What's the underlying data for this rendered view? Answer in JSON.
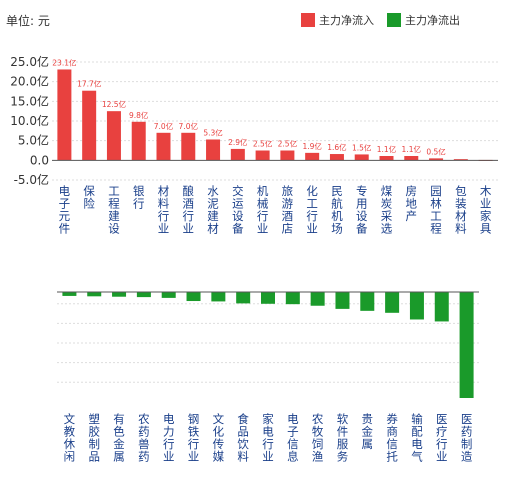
{
  "header": {
    "unit_label": "单位: 元"
  },
  "colors": {
    "inflow": "#e8413f",
    "outflow": "#1a9a2a",
    "category_text": "#1a3f8a",
    "axis_text": "#333333",
    "grid": "#dddddd"
  },
  "legend": [
    {
      "name": "主力净流入",
      "color": "#e8413f"
    },
    {
      "name": "主力净流出",
      "color": "#1a9a2a"
    }
  ],
  "chart_data": [
    {
      "type": "bar",
      "series_name": "主力净流入",
      "categories": [
        "电子元件",
        "保险",
        "工程建设",
        "银行",
        "材料行业",
        "酿酒行业",
        "水泥建材",
        "交运设备",
        "机械行业",
        "旅游酒店",
        "化工行业",
        "民航机场",
        "专用设备",
        "煤炭采选",
        "房地产",
        "园林工程",
        "包装材料",
        "木业家具"
      ],
      "values": [
        23.1,
        17.7,
        12.5,
        9.8,
        7.0,
        7.0,
        5.3,
        2.9,
        2.5,
        2.5,
        1.9,
        1.6,
        1.5,
        1.1,
        1.1,
        0.5,
        0.3,
        0.1
      ],
      "data_labels": [
        "23.1亿",
        "17.7亿",
        "12.5亿",
        "9.8亿",
        "7.0亿",
        "7.0亿",
        "5.3亿",
        "2.9亿",
        "2.5亿",
        "2.5亿",
        "1.9亿",
        "1.6亿",
        "1.5亿",
        "1.1亿",
        "1.1亿",
        "0.5亿",
        "",
        ""
      ],
      "yticks": [
        "25.0亿",
        "20.0亿",
        "15.0亿",
        "10.0亿",
        "5.0亿",
        "0.0",
        "-5.0亿"
      ],
      "ylim": [
        -5,
        25
      ],
      "grid": true
    },
    {
      "type": "bar",
      "series_name": "主力净流出",
      "categories": [
        "文教休闲",
        "塑胶制品",
        "有色金属",
        "农药兽药",
        "电力行业",
        "钢铁行业",
        "文化传媒",
        "食品饮料",
        "家电行业",
        "电子信息",
        "农牧饲渔",
        "软件服务",
        "贵金属",
        "券商信托",
        "输配电气",
        "医疗行业",
        "医药制造"
      ],
      "values": [
        -1.0,
        -1.1,
        -1.2,
        -1.3,
        -1.5,
        -2.3,
        -2.4,
        -2.9,
        -3.0,
        -3.1,
        -3.5,
        -4.3,
        -4.8,
        -5.3,
        -7.0,
        -7.5,
        -27.0
      ],
      "ylim": [
        -27,
        0
      ],
      "grid": true
    }
  ]
}
